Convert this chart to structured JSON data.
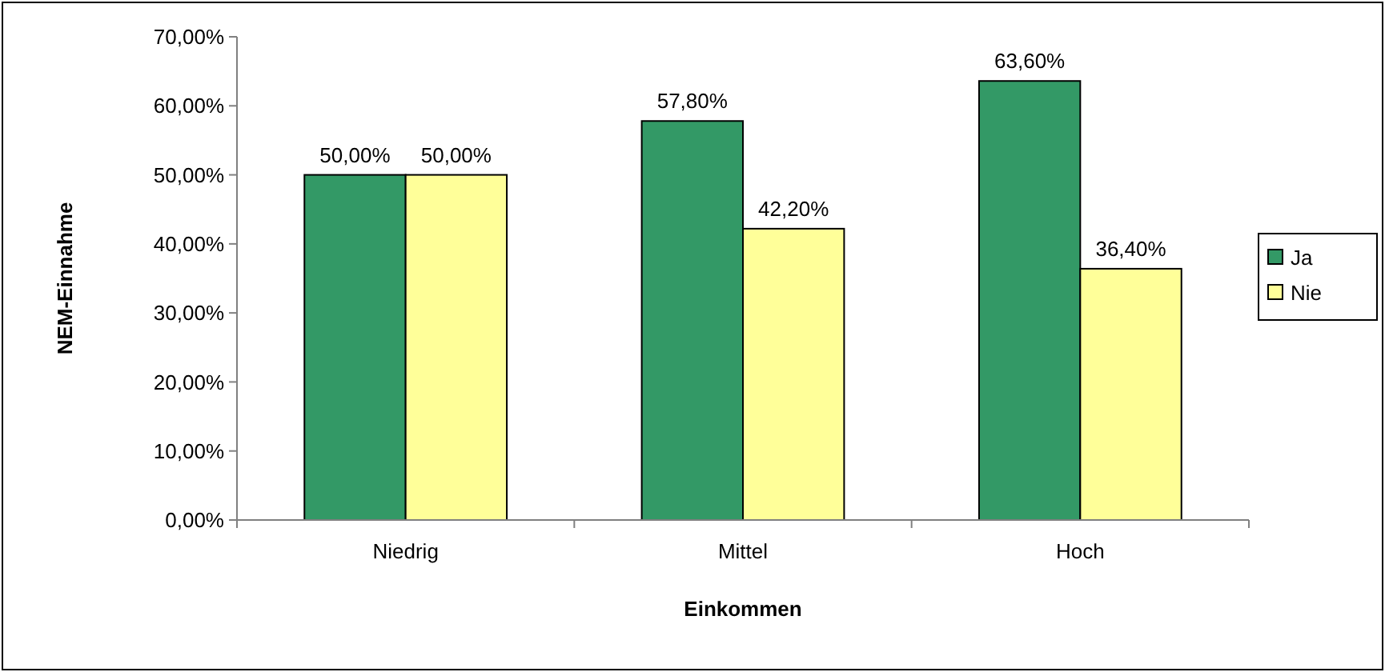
{
  "chart_data": {
    "type": "bar",
    "xlabel": "Einkommen",
    "ylabel": "NEM-Einnahme",
    "categories": [
      "Niedrig",
      "Mittel",
      "Hoch"
    ],
    "series": [
      {
        "name": "Ja",
        "color": "#339966",
        "values": [
          50,
          57.8,
          63.6
        ],
        "value_labels": [
          "50,00%",
          "57,80%",
          "63,60%"
        ]
      },
      {
        "name": "Nie",
        "color": "#ffff99",
        "values": [
          50,
          42.2,
          36.4
        ],
        "value_labels": [
          "50,00%",
          "42,20%",
          "36,40%"
        ]
      }
    ],
    "ylim": [
      0,
      70
    ],
    "yticks": [
      {
        "value": 0,
        "label": "0,00%"
      },
      {
        "value": 10,
        "label": "10,00%"
      },
      {
        "value": 20,
        "label": "20,00%"
      },
      {
        "value": 30,
        "label": "30,00%"
      },
      {
        "value": 40,
        "label": "40,00%"
      },
      {
        "value": 50,
        "label": "50,00%"
      },
      {
        "value": 60,
        "label": "60,00%"
      },
      {
        "value": 70,
        "label": "70,00%"
      }
    ],
    "legend": "right"
  }
}
